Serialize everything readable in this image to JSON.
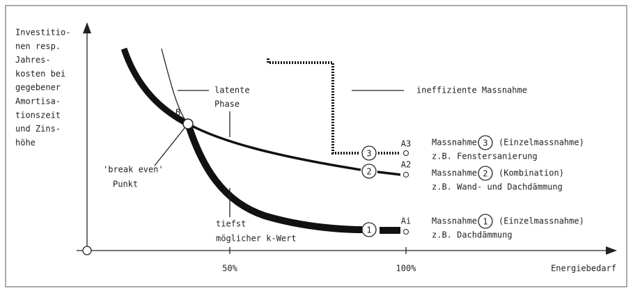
{
  "y_axis_label": [
    "Investitio-",
    "nen resp.",
    "Jahres-",
    "kosten bei",
    "gegebener",
    "Amortisa-",
    "tionszeit",
    "und Zins-",
    "höhe"
  ],
  "x_axis_label": "Energiebedarf",
  "x_ticks": [
    "50%",
    "100%"
  ],
  "point_label": "B",
  "annotations": {
    "latent_phase": [
      "latente",
      "Phase"
    ],
    "break_even": [
      "'break even'",
      "Punkt"
    ],
    "lowest_k": [
      "tiefst",
      "möglicher k-Wert"
    ],
    "inefficient": "ineffiziente Massnahme"
  },
  "curve_markers": [
    "3",
    "2",
    "1"
  ],
  "end_labels": [
    "A3",
    "A2",
    "Ai"
  ],
  "measures": [
    {
      "word": "Massnahme",
      "number": "3",
      "kind": "(Einzelmassnahme)",
      "example": "z.B. Fenstersanierung"
    },
    {
      "word": "Massnahme",
      "number": "2",
      "kind": "(Kombination)",
      "example": "z.B. Wand- und Dachdämmung"
    },
    {
      "word": "Massnahme",
      "number": "1",
      "kind": "(Einzelmassnahme)",
      "example": "z.B. Dachdämmung"
    }
  ]
}
